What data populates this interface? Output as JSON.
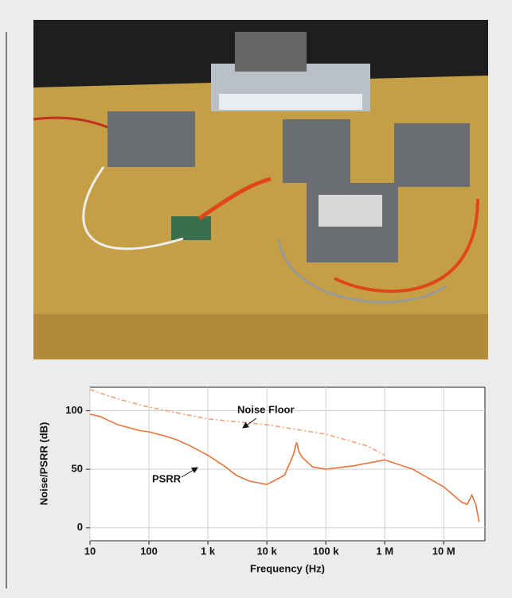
{
  "chart_data": {
    "type": "line",
    "xlabel": "Frequency (Hz)",
    "ylabel": "Noise/PSRR (dB)",
    "xscale": "log",
    "xlim": [
      10,
      50000000
    ],
    "ylim": [
      -11,
      120
    ],
    "xticks": [
      10,
      100,
      {
        "value": 1000,
        "label": "1 k"
      },
      {
        "value": 10000,
        "label": "10 k"
      },
      {
        "value": 100000,
        "label": "100 k"
      },
      {
        "value": 1000000,
        "label": "1 M"
      },
      {
        "value": 10000000,
        "label": "10 M"
      }
    ],
    "yticks": [
      0,
      50,
      100
    ],
    "grid": true,
    "series": [
      {
        "name": "PSRR",
        "color": "#e8743b",
        "dashed": false,
        "x": [
          10,
          15,
          20,
          30,
          50,
          70,
          100,
          200,
          300,
          500,
          1000,
          2000,
          3000,
          5000,
          10000,
          20000,
          28000,
          32000,
          35000,
          40000,
          60000,
          100000,
          300000,
          1000000,
          3000000,
          10000000,
          20000000,
          25000000,
          30000000,
          35000000,
          40000000
        ],
        "values": [
          97,
          95,
          92,
          88,
          85,
          83,
          82,
          78,
          75,
          70,
          62,
          52,
          45,
          40,
          37,
          45,
          62,
          73,
          65,
          60,
          52,
          50,
          53,
          58,
          50,
          35,
          22,
          20,
          28,
          20,
          5
        ]
      },
      {
        "name": "Noise Floor",
        "color": "#f2a27a",
        "dashed": true,
        "x": [
          10,
          30,
          100,
          1000,
          10000,
          100000,
          500000,
          1000000
        ],
        "values": [
          118,
          110,
          103,
          93,
          88,
          80,
          70,
          62
        ]
      }
    ]
  }
}
